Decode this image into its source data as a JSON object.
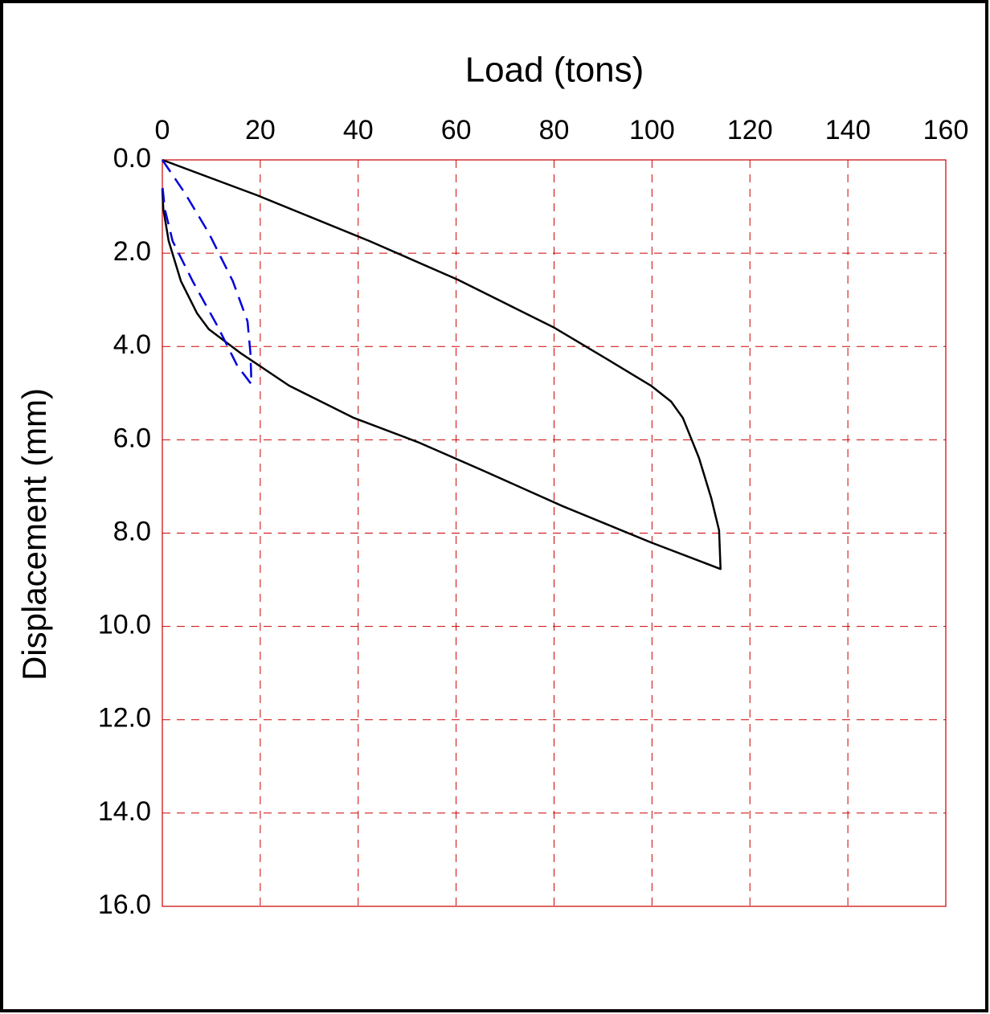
{
  "chart_data": {
    "type": "line",
    "title": "Load (tons)",
    "y_label": "Displacement (mm)",
    "xlim": [
      0,
      160
    ],
    "xticks": [
      0,
      20,
      40,
      60,
      80,
      100,
      120,
      140,
      160
    ],
    "ylim": [
      0,
      16
    ],
    "yticks": [
      {
        "value": 0,
        "label": "0.0"
      },
      {
        "value": 2,
        "label": "2.0"
      },
      {
        "value": 4,
        "label": "4.0"
      },
      {
        "value": 6,
        "label": "6.0"
      },
      {
        "value": 8,
        "label": "8.0"
      },
      {
        "value": 10,
        "label": "10.0"
      },
      {
        "value": 12,
        "label": "12.0"
      },
      {
        "value": 14,
        "label": "14.0"
      },
      {
        "value": 16,
        "label": "16.0"
      }
    ],
    "y_inverted": true,
    "x_axis_position": "top",
    "grid": true,
    "grid_color": "#cc0000",
    "series": [
      {
        "color": "#000000",
        "dashed": false,
        "x": [
          0,
          19.4,
          42.3,
          60.4,
          80.1,
          91.6,
          99.8,
          103.9,
          106.3,
          109.6,
          112.1,
          113.7,
          114,
          99.8,
          81.7,
          65.3,
          52.2,
          39.1,
          25.9,
          16.1,
          9.5,
          7.1,
          3.8,
          1.3,
          0.2,
          0
        ],
        "values": [
          0,
          0.76,
          1.74,
          2.57,
          3.6,
          4.32,
          4.84,
          5.18,
          5.53,
          6.39,
          7.25,
          7.94,
          8.77,
          8.2,
          7.42,
          6.65,
          6.05,
          5.53,
          4.84,
          4.15,
          3.63,
          3.29,
          2.6,
          1.74,
          1.05,
          0.62
        ]
      },
      {
        "color": "#0000dd",
        "dashed": true,
        "x": [
          0,
          4.6,
          9.5,
          14.4,
          17.4,
          18,
          18.2,
          15.3,
          11.2,
          6.2,
          2.1,
          0.5,
          0
        ],
        "values": [
          0,
          0.71,
          1.57,
          2.6,
          3.46,
          4.15,
          4.81,
          4.41,
          3.55,
          2.6,
          1.74,
          1.05,
          0.53
        ]
      }
    ]
  }
}
